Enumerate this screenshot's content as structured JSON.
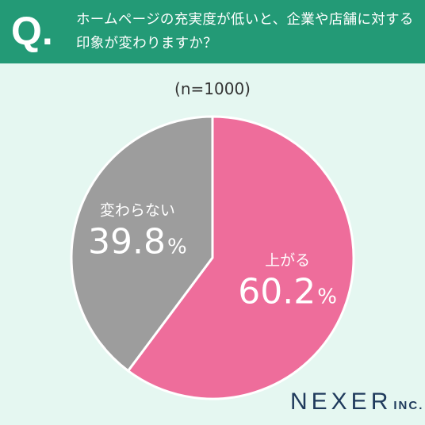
{
  "question": {
    "mark": "Q.",
    "text": "ホームページの充実度が低いと、企業や店舗に対する印象が変わりますか？"
  },
  "sample_size": "(n=1000)",
  "chart_data": {
    "type": "pie",
    "slices": [
      {
        "label": "上がる",
        "value": 60.2,
        "value_label": "60.2",
        "unit": "%",
        "color": "#ee6d9b"
      },
      {
        "label": "変わらない",
        "value": 39.8,
        "value_label": "39.8",
        "unit": "%",
        "color": "#9d9d9d"
      }
    ]
  },
  "logo": {
    "main": "NEXER",
    "sub": "INC."
  }
}
